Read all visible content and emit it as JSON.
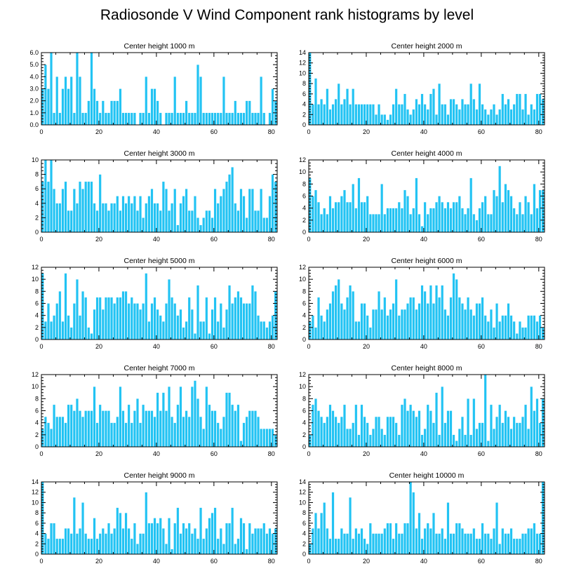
{
  "title": "Radiosonde V Wind Component rank histograms by level",
  "colors": {
    "bar": "#22c3f3",
    "bar_edge": "#ffffff",
    "axis": "#000000"
  },
  "chart_data": [
    {
      "type": "bar",
      "title": "Center height 1000 m",
      "xlim": [
        0,
        82
      ],
      "ylim": [
        0,
        6
      ],
      "xticks": [
        0,
        20,
        40,
        60,
        80
      ],
      "yticks": [
        "0.0",
        "1.0",
        "2.0",
        "3.0",
        "4.0",
        "5.0",
        "6.0"
      ],
      "ytick_values": [
        0,
        1,
        2,
        3,
        4,
        5,
        6
      ],
      "values": [
        3,
        5,
        3,
        6,
        1,
        4,
        1,
        3,
        4,
        3,
        4,
        1,
        6,
        4,
        1,
        1,
        2,
        6,
        3,
        2,
        1,
        2,
        1,
        1,
        2,
        2,
        2,
        3,
        1,
        1,
        1,
        1,
        1,
        0,
        1,
        1,
        4,
        1,
        3,
        3,
        2,
        1,
        0,
        1,
        1,
        1,
        4,
        1,
        1,
        1,
        2,
        1,
        1,
        1,
        5,
        4,
        1,
        1,
        1,
        1,
        1,
        1,
        1,
        4,
        1,
        1,
        1,
        2,
        1,
        1,
        1,
        2,
        2,
        1,
        1,
        1,
        4,
        1,
        0,
        1,
        3,
        2
      ]
    },
    {
      "type": "bar",
      "title": "Center height 2000 m",
      "xlim": [
        0,
        82
      ],
      "ylim": [
        0,
        14
      ],
      "xticks": [
        0,
        20,
        40,
        60,
        80
      ],
      "yticks": [
        "0",
        "2",
        "4",
        "6",
        "8",
        "10",
        "12",
        "14"
      ],
      "ytick_values": [
        0,
        2,
        4,
        6,
        8,
        10,
        12,
        14
      ],
      "values": [
        14,
        4,
        9,
        4,
        5,
        4,
        7,
        3,
        4,
        5,
        8,
        4,
        5,
        7,
        4,
        7,
        4,
        4,
        4,
        4,
        4,
        4,
        4,
        2,
        4,
        2,
        2,
        1,
        2,
        4,
        7,
        4,
        4,
        6,
        3,
        2,
        3,
        5,
        4,
        6,
        4,
        3,
        6,
        7,
        2,
        8,
        4,
        4,
        2,
        5,
        5,
        4,
        3,
        5,
        4,
        4,
        8,
        5,
        3,
        8,
        4,
        3,
        2,
        3,
        4,
        2,
        3,
        6,
        4,
        5,
        3,
        4,
        6,
        6,
        3,
        6,
        2,
        4,
        3,
        6,
        6,
        5
      ]
    },
    {
      "type": "bar",
      "title": "Center height 3000 m",
      "xlim": [
        0,
        82
      ],
      "ylim": [
        0,
        10
      ],
      "xticks": [
        0,
        20,
        40,
        60,
        80
      ],
      "yticks": [
        "0",
        "2",
        "4",
        "6",
        "8",
        "10"
      ],
      "ytick_values": [
        0,
        2,
        4,
        6,
        8,
        10
      ],
      "values": [
        7,
        10,
        7,
        10,
        6,
        4,
        4,
        6,
        7,
        3,
        3,
        6,
        4,
        7,
        6,
        7,
        7,
        7,
        4,
        3,
        8,
        4,
        4,
        3,
        4,
        4,
        5,
        3,
        5,
        4,
        5,
        4,
        5,
        3,
        5,
        2,
        4,
        5,
        6,
        4,
        4,
        3,
        7,
        6,
        3,
        4,
        6,
        1,
        4,
        5,
        6,
        3,
        3,
        5,
        2,
        1,
        2,
        3,
        3,
        2,
        6,
        4,
        5,
        6,
        7,
        8,
        9,
        4,
        3,
        6,
        5,
        2,
        6,
        6,
        3,
        3,
        6,
        2,
        2,
        5,
        8,
        7
      ]
    },
    {
      "type": "bar",
      "title": "Center height 4000 m",
      "xlim": [
        0,
        82
      ],
      "ylim": [
        0,
        12
      ],
      "xticks": [
        0,
        20,
        40,
        60,
        80
      ],
      "yticks": [
        "0",
        "2",
        "4",
        "6",
        "8",
        "10",
        "12"
      ],
      "ytick_values": [
        0,
        2,
        4,
        6,
        8,
        10,
        12
      ],
      "values": [
        9,
        6,
        7,
        5,
        3,
        4,
        3,
        6,
        4,
        5,
        5,
        6,
        7,
        5,
        5,
        8,
        4,
        9,
        5,
        5,
        6,
        3,
        3,
        3,
        3,
        8,
        3,
        4,
        4,
        4,
        4,
        5,
        4,
        7,
        6,
        3,
        4,
        9,
        3,
        1,
        5,
        3,
        4,
        4,
        5,
        6,
        5,
        4,
        5,
        4,
        5,
        5,
        6,
        4,
        3,
        4,
        9,
        3,
        2,
        4,
        5,
        6,
        3,
        3,
        7,
        6,
        11,
        5,
        8,
        7,
        6,
        4,
        3,
        5,
        3,
        6,
        5,
        3,
        8,
        4,
        7,
        7
      ]
    },
    {
      "type": "bar",
      "title": "Center height 5000 m",
      "xlim": [
        0,
        82
      ],
      "ylim": [
        0,
        12
      ],
      "xticks": [
        0,
        20,
        40,
        60,
        80
      ],
      "yticks": [
        "0",
        "2",
        "4",
        "6",
        "8",
        "10",
        "12"
      ],
      "ytick_values": [
        0,
        2,
        4,
        6,
        8,
        10,
        12
      ],
      "values": [
        11,
        3,
        6,
        3,
        4,
        6,
        8,
        3,
        11,
        4,
        2,
        6,
        10,
        4,
        8,
        7,
        2,
        1,
        5,
        7,
        7,
        5,
        7,
        7,
        7,
        6,
        7,
        7,
        8,
        8,
        6,
        7,
        6,
        6,
        5,
        6,
        11,
        3,
        6,
        7,
        5,
        4,
        3,
        6,
        10,
        7,
        6,
        4,
        5,
        2,
        3,
        7,
        5,
        1,
        9,
        3,
        3,
        7,
        1,
        5,
        7,
        3,
        6,
        2,
        5,
        9,
        6,
        7,
        8,
        7,
        6,
        6,
        6,
        9,
        8,
        4,
        3,
        3,
        2,
        3,
        4,
        8
      ]
    },
    {
      "type": "bar",
      "title": "Center height 6000 m",
      "xlim": [
        0,
        82
      ],
      "ylim": [
        0,
        12
      ],
      "xticks": [
        0,
        20,
        40,
        60,
        80
      ],
      "yticks": [
        "0",
        "2",
        "4",
        "6",
        "8",
        "10",
        "12"
      ],
      "ytick_values": [
        0,
        2,
        4,
        6,
        8,
        10,
        12
      ],
      "values": [
        3,
        4,
        2,
        7,
        4,
        3,
        5,
        6,
        8,
        9,
        10,
        6,
        5,
        7,
        9,
        8,
        3,
        3,
        6,
        6,
        4,
        2,
        5,
        5,
        8,
        5,
        7,
        4,
        5,
        6,
        10,
        4,
        5,
        5,
        6,
        7,
        7,
        5,
        6,
        9,
        8,
        6,
        9,
        6,
        9,
        7,
        9,
        5,
        4,
        7,
        11,
        10,
        7,
        6,
        5,
        7,
        5,
        4,
        6,
        6,
        7,
        4,
        3,
        5,
        2,
        6,
        3,
        4,
        4,
        6,
        4,
        3,
        1,
        3,
        2,
        2,
        4,
        4,
        4,
        3,
        4,
        2
      ]
    },
    {
      "type": "bar",
      "title": "Center height 7000 m",
      "xlim": [
        0,
        82
      ],
      "ylim": [
        0,
        12
      ],
      "xticks": [
        0,
        20,
        40,
        60,
        80
      ],
      "yticks": [
        "0",
        "2",
        "4",
        "6",
        "8",
        "10",
        "12"
      ],
      "ytick_values": [
        0,
        2,
        4,
        6,
        8,
        10,
        12
      ],
      "values": [
        3,
        5,
        4,
        3,
        7,
        5,
        5,
        5,
        4,
        7,
        7,
        6,
        8,
        6,
        5,
        6,
        6,
        6,
        10,
        4,
        7,
        6,
        6,
        6,
        4,
        4,
        5,
        10,
        6,
        4,
        7,
        4,
        6,
        8,
        4,
        7,
        6,
        6,
        6,
        5,
        9,
        6,
        9,
        6,
        10,
        5,
        4,
        7,
        10,
        5,
        6,
        5,
        10,
        11,
        8,
        5,
        3,
        10,
        7,
        6,
        6,
        4,
        3,
        5,
        9,
        9,
        7,
        6,
        7,
        1,
        4,
        5,
        6,
        6,
        6,
        5,
        3,
        3,
        3,
        3,
        3,
        2
      ]
    },
    {
      "type": "bar",
      "title": "Center height 8000 m",
      "xlim": [
        0,
        82
      ],
      "ylim": [
        0,
        12
      ],
      "xticks": [
        0,
        20,
        40,
        60,
        80
      ],
      "yticks": [
        "0",
        "2",
        "4",
        "6",
        "8",
        "10",
        "12"
      ],
      "ytick_values": [
        0,
        2,
        4,
        6,
        8,
        10,
        12
      ],
      "values": [
        2,
        7,
        8,
        6,
        5,
        4,
        5,
        7,
        6,
        5,
        4,
        5,
        7,
        3,
        3,
        4,
        7,
        2,
        7,
        5,
        4,
        2,
        3,
        5,
        5,
        3,
        2,
        5,
        5,
        5,
        4,
        2,
        7,
        8,
        6,
        7,
        6,
        5,
        6,
        2,
        3,
        7,
        6,
        4,
        9,
        2,
        10,
        4,
        6,
        6,
        2,
        1,
        3,
        5,
        2,
        8,
        2,
        8,
        3,
        4,
        4,
        12,
        1,
        7,
        3,
        5,
        7,
        4,
        6,
        5,
        3,
        5,
        4,
        4,
        5,
        7,
        3,
        10,
        6,
        8,
        4,
        8
      ]
    },
    {
      "type": "bar",
      "title": "Center height 9000 m",
      "xlim": [
        0,
        82
      ],
      "ylim": [
        0,
        14
      ],
      "xticks": [
        0,
        20,
        40,
        60,
        80
      ],
      "yticks": [
        "0",
        "2",
        "4",
        "6",
        "8",
        "10",
        "12",
        "14"
      ],
      "ytick_values": [
        0,
        2,
        4,
        6,
        8,
        10,
        12,
        14
      ],
      "values": [
        14,
        4,
        3,
        6,
        6,
        3,
        3,
        3,
        5,
        5,
        4,
        11,
        4,
        5,
        10,
        4,
        3,
        3,
        7,
        3,
        4,
        5,
        4,
        6,
        4,
        5,
        9,
        8,
        5,
        8,
        5,
        3,
        6,
        2,
        4,
        4,
        12,
        6,
        6,
        7,
        6,
        7,
        5,
        2,
        7,
        1,
        6,
        9,
        4,
        6,
        5,
        6,
        4,
        5,
        3,
        9,
        3,
        5,
        7,
        8,
        9,
        3,
        5,
        2,
        6,
        6,
        9,
        2,
        3,
        7,
        6,
        1,
        6,
        4,
        5,
        5,
        5,
        6,
        4,
        5,
        4,
        5
      ]
    },
    {
      "type": "bar",
      "title": "Center height 10000 m",
      "xlim": [
        0,
        82
      ],
      "ylim": [
        0,
        14
      ],
      "xticks": [
        0,
        20,
        40,
        60,
        80
      ],
      "yticks": [
        "0",
        "2",
        "4",
        "6",
        "8",
        "10",
        "12",
        "14"
      ],
      "ytick_values": [
        0,
        2,
        4,
        6,
        8,
        10,
        12,
        14
      ],
      "values": [
        2,
        5,
        8,
        5,
        8,
        10,
        5,
        3,
        12,
        3,
        3,
        5,
        4,
        4,
        11,
        3,
        5,
        4,
        5,
        3,
        2,
        6,
        4,
        4,
        4,
        4,
        5,
        6,
        6,
        3,
        6,
        4,
        4,
        6,
        6,
        14,
        12,
        5,
        8,
        3,
        5,
        6,
        5,
        8,
        4,
        4,
        5,
        3,
        10,
        4,
        4,
        6,
        6,
        5,
        4,
        4,
        4,
        5,
        3,
        3,
        6,
        4,
        4,
        3,
        5,
        10,
        2,
        5,
        4,
        4,
        5,
        3,
        3,
        3,
        4,
        4,
        5,
        5,
        6,
        4,
        4,
        14
      ]
    }
  ]
}
